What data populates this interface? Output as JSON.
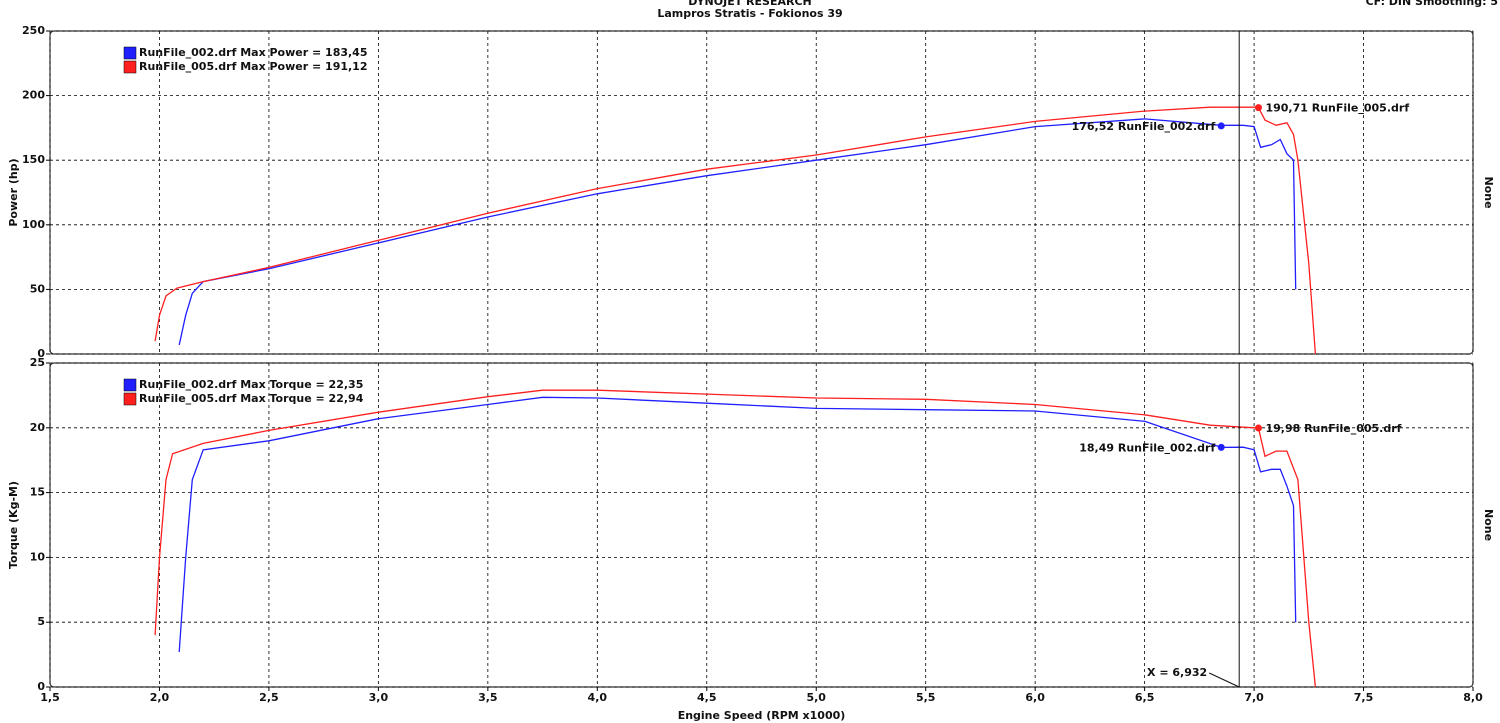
{
  "header": {
    "title": "DYNOJET RESEARCH",
    "subtitle": "Lampros Stratis - Fokionos 39",
    "settings": "CF: DIN  Smoothing: 5"
  },
  "cursor": {
    "value": 6.932,
    "label": "X = 6,932"
  },
  "chart_data": [
    {
      "type": "line",
      "ylabel": "Power (hp)",
      "right_label": "None",
      "xlim": [
        1.5,
        8.0
      ],
      "xticks": [
        1.5,
        2,
        2.5,
        3,
        3.5,
        4,
        4.5,
        5,
        5.5,
        6,
        6.5,
        7,
        7.5,
        8
      ],
      "ylim": [
        0,
        250
      ],
      "yticks": [
        0,
        50,
        100,
        150,
        200,
        250
      ],
      "grid": true,
      "series": [
        {
          "name": "RunFile_002.drf Max Power = 183,45",
          "color": "#1f1fff",
          "x": [
            2.09,
            2.12,
            2.15,
            2.2,
            2.5,
            3.0,
            3.5,
            4.0,
            4.5,
            5.0,
            5.5,
            6.0,
            6.5,
            6.85,
            6.95,
            7.0,
            7.03,
            7.08,
            7.12,
            7.15,
            7.18,
            7.19
          ],
          "values": [
            7,
            30,
            47,
            56,
            66,
            86,
            106,
            124,
            138,
            150,
            162,
            176,
            182,
            177,
            177,
            176,
            160,
            162,
            166,
            155,
            150,
            50
          ]
        },
        {
          "name": "RunFile_005.drf Max Power = 191,12",
          "color": "#ff1f1f",
          "x": [
            1.98,
            2.0,
            2.03,
            2.08,
            2.2,
            2.5,
            3.0,
            3.5,
            4.0,
            4.5,
            5.0,
            5.5,
            6.0,
            6.5,
            6.8,
            7.0,
            7.02,
            7.05,
            7.1,
            7.15,
            7.18,
            7.2,
            7.25,
            7.28
          ],
          "values": [
            10,
            30,
            45,
            51,
            56,
            67,
            88,
            109,
            128,
            143,
            154,
            168,
            180,
            188,
            191,
            191,
            190.71,
            181,
            177,
            179,
            170,
            150,
            70,
            0
          ]
        }
      ],
      "annotations": [
        {
          "x": 6.85,
          "y": 176.52,
          "label": "176,52 RunFile_002.drf",
          "color": "#1f1fff",
          "side": "left"
        },
        {
          "x": 7.02,
          "y": 190.71,
          "label": "190,71 RunFile_005.drf",
          "color": "#ff1f1f",
          "side": "right"
        }
      ]
    },
    {
      "type": "line",
      "ylabel": "Torque (Kg-M)",
      "right_label": "None",
      "xlabel": "Engine Speed (RPM x1000)",
      "xlim": [
        1.5,
        8.0
      ],
      "xticks": [
        {
          "value": 1.5,
          "label": "1,5"
        },
        {
          "value": 2,
          "label": "2,0"
        },
        {
          "value": 2.5,
          "label": "2,5"
        },
        {
          "value": 3,
          "label": "3,0"
        },
        {
          "value": 3.5,
          "label": "3,5"
        },
        {
          "value": 4,
          "label": "4,0"
        },
        {
          "value": 4.5,
          "label": "4,5"
        },
        {
          "value": 5,
          "label": "5,0"
        },
        {
          "value": 5.5,
          "label": "5,5"
        },
        {
          "value": 6,
          "label": "6,0"
        },
        {
          "value": 6.5,
          "label": "6,5"
        },
        {
          "value": 7,
          "label": "7,0"
        },
        {
          "value": 7.5,
          "label": "7,5"
        },
        {
          "value": 8,
          "label": "8,0"
        }
      ],
      "ylim": [
        0,
        25
      ],
      "yticks": [
        0,
        5,
        10,
        15,
        20,
        25
      ],
      "grid": true,
      "series": [
        {
          "name": "RunFile_002.drf Max Torque = 22,35",
          "color": "#1f1fff",
          "x": [
            2.09,
            2.12,
            2.15,
            2.2,
            2.5,
            3.0,
            3.5,
            3.75,
            4.0,
            4.5,
            5.0,
            5.5,
            6.0,
            6.5,
            6.85,
            6.95,
            7.0,
            7.03,
            7.08,
            7.12,
            7.15,
            7.18,
            7.19
          ],
          "values": [
            2.7,
            10,
            16,
            18.3,
            19,
            20.7,
            21.8,
            22.35,
            22.3,
            21.9,
            21.5,
            21.4,
            21.3,
            20.5,
            18.49,
            18.5,
            18.3,
            16.6,
            16.8,
            16.8,
            15.5,
            14,
            5
          ]
        },
        {
          "name": "RunFile_005.drf Max Torque = 22,94",
          "color": "#ff1f1f",
          "x": [
            1.98,
            2.0,
            2.03,
            2.06,
            2.2,
            2.5,
            3.0,
            3.5,
            3.75,
            4.0,
            4.5,
            5.0,
            5.5,
            6.0,
            6.5,
            6.8,
            7.0,
            7.02,
            7.05,
            7.1,
            7.15,
            7.2,
            7.25,
            7.28
          ],
          "values": [
            4,
            10,
            16,
            18,
            18.8,
            19.8,
            21.2,
            22.4,
            22.9,
            22.9,
            22.6,
            22.3,
            22.2,
            21.8,
            21,
            20.2,
            20,
            19.98,
            17.8,
            18.2,
            18.2,
            16,
            5,
            0
          ]
        }
      ],
      "annotations": [
        {
          "x": 6.85,
          "y": 18.49,
          "label": "18,49 RunFile_002.drf",
          "color": "#1f1fff",
          "side": "left"
        },
        {
          "x": 7.02,
          "y": 19.98,
          "label": "19,98 RunFile_005.drf",
          "color": "#ff1f1f",
          "side": "right"
        }
      ]
    }
  ]
}
